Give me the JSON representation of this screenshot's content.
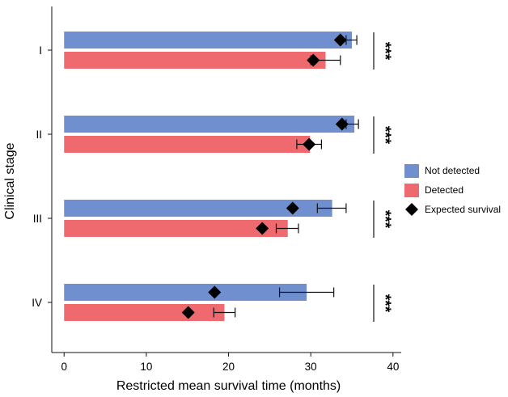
{
  "chart_data": {
    "type": "bar",
    "orientation": "horizontal",
    "categories": [
      "I",
      "II",
      "III",
      "IV"
    ],
    "series": [
      {
        "name": "Not detected",
        "color": "#6f8fcf",
        "values": [
          35.0,
          35.3,
          32.6,
          29.5
        ],
        "err_low": [
          34.3,
          34.3,
          30.8,
          26.2
        ],
        "err_high": [
          35.6,
          35.8,
          34.3,
          32.8
        ],
        "expected": [
          33.6,
          33.8,
          27.8,
          18.3
        ]
      },
      {
        "name": "Detected",
        "color": "#ee6a6e",
        "values": [
          31.8,
          29.9,
          27.2,
          19.5
        ],
        "err_low": [
          30.0,
          28.3,
          25.8,
          18.2
        ],
        "err_high": [
          33.6,
          31.3,
          28.5,
          20.8
        ],
        "expected": [
          30.3,
          29.8,
          24.1,
          15.1
        ]
      }
    ],
    "expected_label": "Expected survival",
    "significance": [
      "***",
      "***",
      "***",
      "***"
    ],
    "xlabel": "Restricted mean survival time (months)",
    "ylabel": "Clinical stage",
    "xlim": [
      -1.5,
      41
    ],
    "xticks": [
      0,
      10,
      20,
      30,
      40
    ],
    "xtick_labels": [
      "0",
      "10",
      "20",
      "30",
      "40"
    ],
    "legend_position": "right"
  }
}
